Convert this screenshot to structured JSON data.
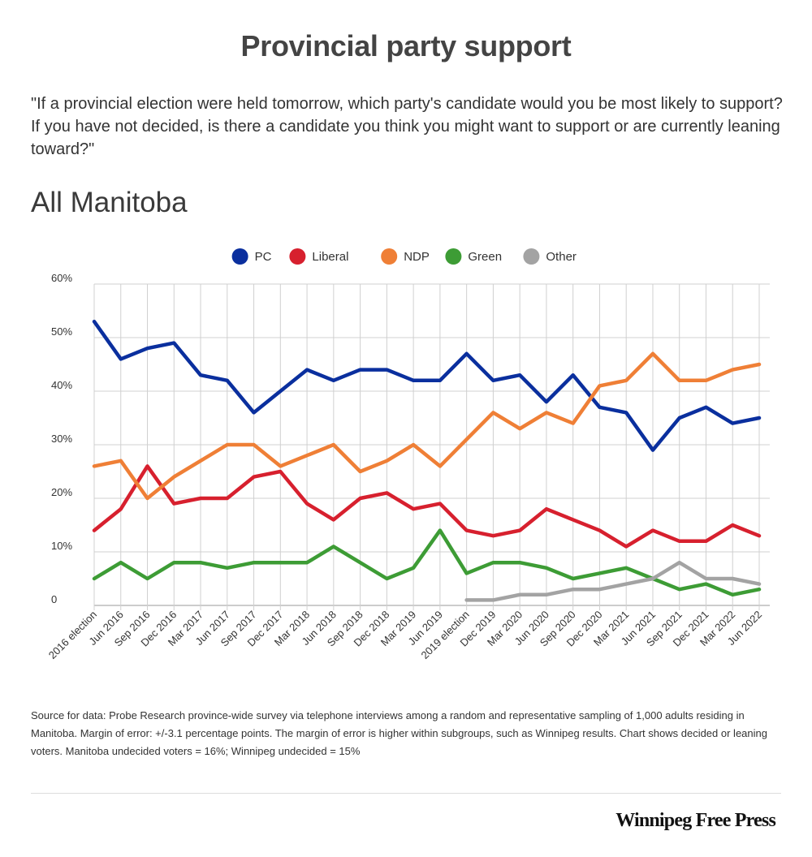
{
  "header": {
    "title": "Provincial party support",
    "question": "\"If a provincial election were held tomorrow, which party's candidate would you be most likely to support? If you have not decided, is there a candidate you think you might want to support or are currently leaning toward?\"",
    "region": "All Manitoba"
  },
  "chart_data": {
    "type": "line",
    "title": "All Manitoba",
    "xlabel": "",
    "ylabel": "",
    "ylim": [
      0,
      60
    ],
    "yticks": [
      0,
      10,
      20,
      30,
      40,
      50,
      60
    ],
    "ytick_labels": [
      "0",
      "10%",
      "20%",
      "30%",
      "40%",
      "50%",
      "60%"
    ],
    "grid": true,
    "legend_position": "top-center",
    "categories": [
      "2016 election",
      "Jun 2016",
      "Sep 2016",
      "Dec 2016",
      "Mar 2017",
      "Jun 2017",
      "Sep 2017",
      "Dec 2017",
      "Mar 2018",
      "Jun 2018",
      "Sep 2018",
      "Dec 2018",
      "Mar 2019",
      "Jun 2019",
      "2019 election",
      "Dec 2019",
      "Mar 2020",
      "Jun 2020",
      "Sep 2020",
      "Dec 2020",
      "Mar 2021",
      "Jun 2021",
      "Sep 2021",
      "Dec 2021",
      "Mar 2022",
      "Jun 2022"
    ],
    "series": [
      {
        "name": "PC",
        "color": "#0a2f9e",
        "values": [
          53,
          46,
          48,
          49,
          43,
          42,
          36,
          40,
          44,
          42,
          44,
          44,
          42,
          42,
          47,
          42,
          43,
          38,
          43,
          37,
          36,
          29,
          35,
          37,
          34,
          35
        ]
      },
      {
        "name": "Liberal",
        "color": "#d7202e",
        "values": [
          14,
          18,
          26,
          19,
          20,
          20,
          24,
          25,
          19,
          16,
          20,
          21,
          18,
          19,
          14,
          13,
          14,
          18,
          16,
          14,
          11,
          14,
          12,
          12,
          15,
          13
        ]
      },
      {
        "name": "NDP",
        "color": "#ef7f36",
        "values": [
          26,
          27,
          20,
          24,
          27,
          30,
          30,
          26,
          28,
          30,
          25,
          27,
          30,
          26,
          31,
          36,
          33,
          36,
          34,
          41,
          42,
          47,
          42,
          42,
          44,
          45
        ]
      },
      {
        "name": "Green",
        "color": "#3d9c35",
        "values": [
          5,
          8,
          5,
          8,
          8,
          7,
          8,
          8,
          8,
          11,
          8,
          5,
          7,
          14,
          6,
          8,
          8,
          7,
          5,
          6,
          7,
          5,
          3,
          4,
          2,
          3
        ]
      },
      {
        "name": "Other",
        "color": "#a3a3a3",
        "values": [
          null,
          null,
          null,
          null,
          null,
          null,
          null,
          null,
          null,
          null,
          null,
          null,
          null,
          null,
          1,
          1,
          2,
          2,
          3,
          3,
          4,
          5,
          8,
          5,
          5,
          4
        ]
      }
    ]
  },
  "footer": {
    "source": "Source for data:  Probe Research province-wide survey via telephone interviews among a random and representative sampling of 1,000 adults residing in Manitoba.  Margin of error: +/-3.1 percentage points.  The margin of error is higher within subgroups, such as Winnipeg results.  Chart shows decided or leaning voters. Manitoba undecided voters = 16%; Winnipeg undecided = 15%",
    "logo": "Winnipeg Free Press"
  }
}
